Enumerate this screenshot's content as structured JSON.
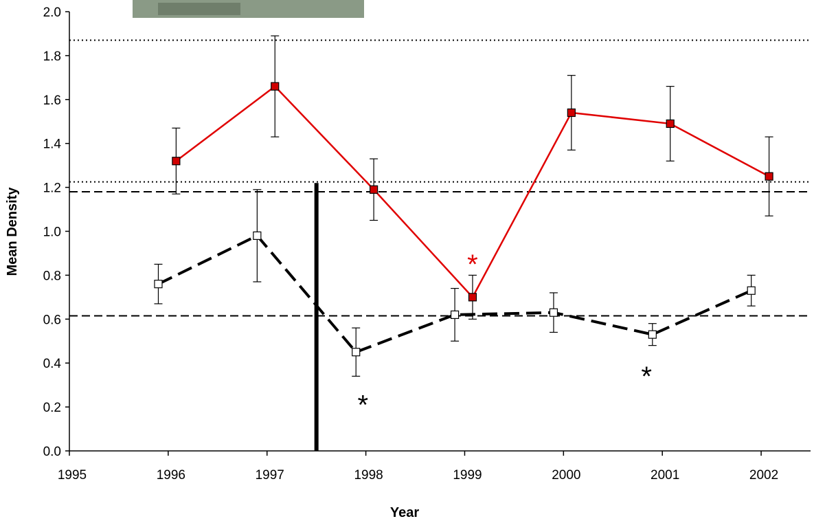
{
  "chart_data": {
    "type": "line",
    "x_label": "Year",
    "y_label": "Mean Density",
    "xlim": [
      1995,
      2002.5
    ],
    "xticks": [
      1995,
      1996,
      1997,
      1998,
      1999,
      2000,
      2001,
      2002
    ],
    "ylim": [
      0,
      2.0
    ],
    "yticks": [
      {
        "value": 0,
        "label": "0.0"
      },
      {
        "value": 0.2,
        "label": "0.2"
      },
      {
        "value": 0.4,
        "label": "0.4"
      },
      {
        "value": 0.6,
        "label": "0.6"
      },
      {
        "value": 0.8,
        "label": "0.8"
      },
      {
        "value": 1.0,
        "label": "1.0"
      },
      {
        "value": 1.2,
        "label": "1.2"
      },
      {
        "value": 1.4,
        "label": "1.4"
      },
      {
        "value": 1.6,
        "label": "1.6"
      },
      {
        "value": 1.8,
        "label": "1.8"
      },
      {
        "value": 2.0,
        "label": "2.0"
      }
    ],
    "series": [
      {
        "color": "#e00000",
        "marker_fill": "#d00000",
        "dashed": false,
        "x": [
          1996.08,
          1997.08,
          1998.08,
          1999.08,
          2000.08,
          2001.08,
          2002.08
        ],
        "values": [
          1.32,
          1.66,
          1.19,
          0.7,
          1.54,
          1.49,
          1.25
        ],
        "errors": [
          0.15,
          0.23,
          0.14,
          0.1,
          0.17,
          0.17,
          0.18
        ]
      },
      {
        "color": "#000000",
        "marker_fill": "#ffffff",
        "dashed": true,
        "x": [
          1995.9,
          1996.9,
          1997.9,
          1998.9,
          1999.9,
          2000.9,
          2001.9
        ],
        "values": [
          0.76,
          0.98,
          0.45,
          0.62,
          0.63,
          0.53,
          0.73
        ],
        "errors": [
          0.09,
          0.21,
          0.11,
          0.12,
          0.09,
          0.05,
          0.07
        ]
      }
    ],
    "reference_lines": [
      {
        "value": 1.87,
        "style": "dotted"
      },
      {
        "value": 1.225,
        "style": "dotted"
      },
      {
        "value": 1.18,
        "style": "dashed"
      },
      {
        "value": 0.615,
        "style": "dashed"
      }
    ],
    "event_line": {
      "x": 1997.5,
      "top": 1.22
    },
    "annotations": [
      {
        "text": "*",
        "x": 1999.08,
        "y": 0.87,
        "color": "#e00000"
      },
      {
        "text": "*",
        "x": 1997.97,
        "y": 0.23,
        "color": "#000000"
      },
      {
        "text": "*",
        "x": 2000.84,
        "y": 0.36,
        "color": "#000000"
      }
    ]
  }
}
